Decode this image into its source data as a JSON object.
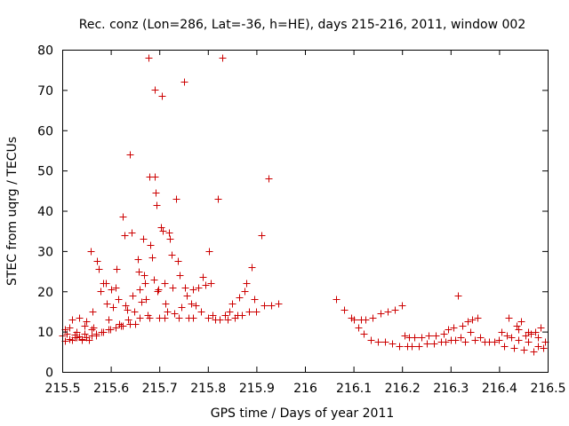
{
  "chart_data": {
    "type": "scatter",
    "title": "Rec. conz (Lon=286, Lat=-36, h=HE), days 215-216, 2011, window 002",
    "xlabel": "GPS time / Days of year 2011",
    "ylabel": "STEC from uqrg / TECUs",
    "xlim": [
      215.5,
      216.5
    ],
    "ylim": [
      0,
      80
    ],
    "grid": false,
    "marker": "plus",
    "color": "#cc0000",
    "x_ticks": [
      "215.5",
      "215.6",
      "215.7",
      "215.8",
      "215.9",
      "216",
      "216.1",
      "216.2",
      "216.3",
      "216.4",
      "216.5"
    ],
    "y_ticks": [
      "0",
      "10",
      "20",
      "30",
      "40",
      "50",
      "60",
      "70",
      "80"
    ],
    "points": [
      [
        215.505,
        7.8
      ],
      [
        215.51,
        9.5
      ],
      [
        215.515,
        11.0
      ],
      [
        215.52,
        13.0
      ],
      [
        215.525,
        8.5
      ],
      [
        215.53,
        10.0
      ],
      [
        215.535,
        13.5
      ],
      [
        215.54,
        8.0
      ],
      [
        215.545,
        9.5
      ],
      [
        215.55,
        12.5
      ],
      [
        215.555,
        8.0
      ],
      [
        215.56,
        10.5
      ],
      [
        215.5,
        9.0
      ],
      [
        215.505,
        10.5
      ],
      [
        215.515,
        8.2
      ],
      [
        215.525,
        9.2
      ],
      [
        215.535,
        8.8
      ],
      [
        215.545,
        11.5
      ],
      [
        215.558,
        30.0
      ],
      [
        215.562,
        15.0
      ],
      [
        215.565,
        11.0
      ],
      [
        215.57,
        9.0
      ],
      [
        215.572,
        27.5
      ],
      [
        215.575,
        25.5
      ],
      [
        215.578,
        20.0
      ],
      [
        215.58,
        10.0
      ],
      [
        215.585,
        22.0
      ],
      [
        215.59,
        22.0
      ],
      [
        215.592,
        17.0
      ],
      [
        215.595,
        13.0
      ],
      [
        215.598,
        10.5
      ],
      [
        215.6,
        20.5
      ],
      [
        215.605,
        16.0
      ],
      [
        215.61,
        21.0
      ],
      [
        215.612,
        25.5
      ],
      [
        215.615,
        18.0
      ],
      [
        215.618,
        12.0
      ],
      [
        215.62,
        11.5
      ],
      [
        215.625,
        38.5
      ],
      [
        215.628,
        34.0
      ],
      [
        215.63,
        16.5
      ],
      [
        215.633,
        15.5
      ],
      [
        215.636,
        13.0
      ],
      [
        215.64,
        54.0
      ],
      [
        215.642,
        34.5
      ],
      [
        215.645,
        19.0
      ],
      [
        215.648,
        15.0
      ],
      [
        215.65,
        12.0
      ],
      [
        215.655,
        28.0
      ],
      [
        215.658,
        25.0
      ],
      [
        215.66,
        20.5
      ],
      [
        215.663,
        17.5
      ],
      [
        215.666,
        33.0
      ],
      [
        215.668,
        24.0
      ],
      [
        215.67,
        22.0
      ],
      [
        215.672,
        18.0
      ],
      [
        215.675,
        14.0
      ],
      [
        215.678,
        78.0
      ],
      [
        215.68,
        48.5
      ],
      [
        215.682,
        31.5
      ],
      [
        215.685,
        28.5
      ],
      [
        215.688,
        23.0
      ],
      [
        215.69,
        48.5
      ],
      [
        215.691,
        70.0
      ],
      [
        215.693,
        44.5
      ],
      [
        215.694,
        41.5
      ],
      [
        215.696,
        20.0
      ],
      [
        215.698,
        20.5
      ],
      [
        215.7,
        13.5
      ],
      [
        215.703,
        36.0
      ],
      [
        215.705,
        68.5
      ],
      [
        215.707,
        35.0
      ],
      [
        215.71,
        22.0
      ],
      [
        215.713,
        17.0
      ],
      [
        215.716,
        15.0
      ],
      [
        215.72,
        34.5
      ],
      [
        215.722,
        33.0
      ],
      [
        215.725,
        29.0
      ],
      [
        215.728,
        21.0
      ],
      [
        215.73,
        14.5
      ],
      [
        215.735,
        43.0
      ],
      [
        215.738,
        27.5
      ],
      [
        215.742,
        24.0
      ],
      [
        215.745,
        16.0
      ],
      [
        215.75,
        72.0
      ],
      [
        215.753,
        21.0
      ],
      [
        215.757,
        19.0
      ],
      [
        215.76,
        13.5
      ],
      [
        215.765,
        17.0
      ],
      [
        215.77,
        20.5
      ],
      [
        215.775,
        16.5
      ],
      [
        215.78,
        21.0
      ],
      [
        215.785,
        15.0
      ],
      [
        215.79,
        23.5
      ],
      [
        215.795,
        21.5
      ],
      [
        215.8,
        13.5
      ],
      [
        215.803,
        30.0
      ],
      [
        215.806,
        22.0
      ],
      [
        215.81,
        14.0
      ],
      [
        215.815,
        13.0
      ],
      [
        215.82,
        43.0
      ],
      [
        215.825,
        13.0
      ],
      [
        215.83,
        78.0
      ],
      [
        215.835,
        14.0
      ],
      [
        215.84,
        13.0
      ],
      [
        215.845,
        15.0
      ],
      [
        215.85,
        17.0
      ],
      [
        215.855,
        13.5
      ],
      [
        215.86,
        14.0
      ],
      [
        215.865,
        18.5
      ],
      [
        215.87,
        14.0
      ],
      [
        215.875,
        20.0
      ],
      [
        215.88,
        22.0
      ],
      [
        215.885,
        15.0
      ],
      [
        215.89,
        26.0
      ],
      [
        215.895,
        18.0
      ],
      [
        215.9,
        15.0
      ],
      [
        215.91,
        34.0
      ],
      [
        215.915,
        16.5
      ],
      [
        215.925,
        48.0
      ],
      [
        215.93,
        16.5
      ],
      [
        215.945,
        17.0
      ],
      [
        215.585,
        10.0
      ],
      [
        215.595,
        10.5
      ],
      [
        215.61,
        11.0
      ],
      [
        215.625,
        11.5
      ],
      [
        215.64,
        12.0
      ],
      [
        215.66,
        13.5
      ],
      [
        215.68,
        13.5
      ],
      [
        215.71,
        13.5
      ],
      [
        215.74,
        13.5
      ],
      [
        215.77,
        13.5
      ],
      [
        215.57,
        9.5
      ],
      [
        215.56,
        9.0
      ],
      [
        215.55,
        8.5
      ],
      [
        215.54,
        8.2
      ],
      [
        215.53,
        8.5
      ],
      [
        215.52,
        8.0
      ],
      [
        216.065,
        18.0
      ],
      [
        216.08,
        15.5
      ],
      [
        216.095,
        13.5
      ],
      [
        216.1,
        13.0
      ],
      [
        216.11,
        11.0
      ],
      [
        216.115,
        13.0
      ],
      [
        216.12,
        9.5
      ],
      [
        216.125,
        13.0
      ],
      [
        216.135,
        8.0
      ],
      [
        216.14,
        13.5
      ],
      [
        216.15,
        7.5
      ],
      [
        216.155,
        14.5
      ],
      [
        216.165,
        7.5
      ],
      [
        216.17,
        15.0
      ],
      [
        216.18,
        7.0
      ],
      [
        216.185,
        15.5
      ],
      [
        216.195,
        6.5
      ],
      [
        216.2,
        16.5
      ],
      [
        216.205,
        9.0
      ],
      [
        216.21,
        6.5
      ],
      [
        216.215,
        8.5
      ],
      [
        216.22,
        6.5
      ],
      [
        216.225,
        8.5
      ],
      [
        216.235,
        6.5
      ],
      [
        216.24,
        8.5
      ],
      [
        216.25,
        7.0
      ],
      [
        216.255,
        9.0
      ],
      [
        216.265,
        7.0
      ],
      [
        216.27,
        9.0
      ],
      [
        216.28,
        7.5
      ],
      [
        216.285,
        9.5
      ],
      [
        216.29,
        7.5
      ],
      [
        216.295,
        10.5
      ],
      [
        216.3,
        8.0
      ],
      [
        216.305,
        11.0
      ],
      [
        216.31,
        8.0
      ],
      [
        216.315,
        19.0
      ],
      [
        216.32,
        8.5
      ],
      [
        216.325,
        11.5
      ],
      [
        216.33,
        7.5
      ],
      [
        216.335,
        12.5
      ],
      [
        216.34,
        10.0
      ],
      [
        216.345,
        13.0
      ],
      [
        216.35,
        8.0
      ],
      [
        216.355,
        13.5
      ],
      [
        216.36,
        8.5
      ],
      [
        216.37,
        7.5
      ],
      [
        216.38,
        7.5
      ],
      [
        216.39,
        7.5
      ],
      [
        216.4,
        8.0
      ],
      [
        216.405,
        10.0
      ],
      [
        216.41,
        6.5
      ],
      [
        216.415,
        9.0
      ],
      [
        216.42,
        13.5
      ],
      [
        216.425,
        8.5
      ],
      [
        216.43,
        6.0
      ],
      [
        216.435,
        11.5
      ],
      [
        216.44,
        8.0
      ],
      [
        216.445,
        12.5
      ],
      [
        216.45,
        5.5
      ],
      [
        216.455,
        9.0
      ],
      [
        216.46,
        7.5
      ],
      [
        216.465,
        9.5
      ],
      [
        216.47,
        5.0
      ],
      [
        216.475,
        10.0
      ],
      [
        216.48,
        6.5
      ],
      [
        216.485,
        11.0
      ],
      [
        216.49,
        6.0
      ],
      [
        216.495,
        7.5
      ],
      [
        216.44,
        10.5
      ],
      [
        216.46,
        10.0
      ],
      [
        216.48,
        8.5
      ]
    ]
  }
}
